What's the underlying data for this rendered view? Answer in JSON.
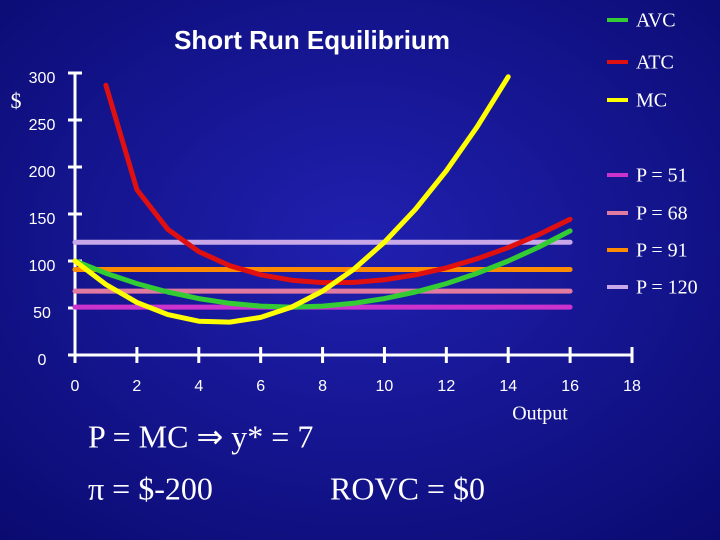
{
  "chart_data": {
    "type": "line",
    "title": "Short Run Equilibrium",
    "ylabel": "$",
    "xlabel": "Output",
    "xlim": [
      0,
      18
    ],
    "xticks": [
      0,
      2,
      4,
      6,
      8,
      10,
      12,
      14,
      16,
      18
    ],
    "ylim": [
      0,
      300
    ],
    "yticks": [
      0,
      50,
      100,
      150,
      200,
      250,
      300
    ],
    "series": [
      {
        "name": "AVC",
        "color": "#33cc33",
        "x": [
          0,
          1,
          2,
          3,
          4,
          5,
          6,
          7,
          8,
          9,
          10,
          11,
          12,
          13,
          14,
          15,
          16
        ],
        "values": [
          100,
          87,
          76,
          67,
          60,
          55,
          52,
          51,
          52,
          55,
          60,
          67,
          76,
          87,
          100,
          115,
          132
        ]
      },
      {
        "name": "ATC",
        "color": "#e01010",
        "x": [
          1,
          2,
          3,
          4,
          5,
          6,
          7,
          8,
          9,
          10,
          11,
          12,
          13,
          14,
          15,
          16
        ],
        "values": [
          287,
          176,
          133.7,
          110,
          95,
          85.3,
          79.6,
          77,
          77.2,
          80,
          85.2,
          92.7,
          102.4,
          114.3,
          128.3,
          144.5
        ]
      },
      {
        "name": "MC",
        "color": "#ffff00",
        "x": [
          0,
          1,
          2,
          3,
          4,
          5,
          6,
          7,
          8,
          9,
          10,
          11,
          12,
          13,
          14
        ],
        "values": [
          100,
          75,
          56,
          43,
          36,
          35,
          40,
          51,
          68,
          91,
          120,
          155,
          196,
          243,
          296
        ]
      },
      {
        "name": "P = 51",
        "color": "#cc33cc",
        "x": [
          0,
          16
        ],
        "values": [
          51,
          51
        ]
      },
      {
        "name": "P = 68",
        "color": "#e07aa0",
        "x": [
          0,
          16
        ],
        "values": [
          68,
          68
        ]
      },
      {
        "name": "P = 91",
        "color": "#ff8c00",
        "x": [
          0,
          16
        ],
        "values": [
          91,
          91
        ]
      },
      {
        "name": "P = 120",
        "color": "#c8a8e8",
        "x": [
          0,
          16
        ],
        "values": [
          120,
          120
        ]
      }
    ],
    "annotations": [
      "P = MC ⇒ y* = 7",
      "π = $-200",
      "ROVC = $0"
    ]
  }
}
